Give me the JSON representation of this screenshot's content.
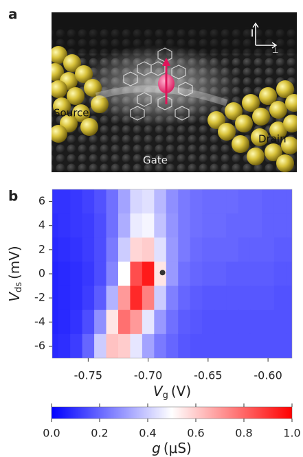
{
  "figure": {
    "panel_a": "a",
    "panel_b": "b",
    "source": "Source",
    "drain": "Drain",
    "gate": "Gate",
    "parallel": "∥",
    "perpendicular": "⊥"
  },
  "chart_data": {
    "type": "heatmap",
    "x": [
      -0.78,
      -0.77,
      -0.76,
      -0.75,
      -0.74,
      -0.73,
      -0.72,
      -0.71,
      -0.7,
      -0.69,
      -0.68,
      -0.67,
      -0.66,
      -0.65,
      -0.64,
      -0.63,
      -0.62,
      -0.61,
      -0.6,
      -0.59,
      -0.58
    ],
    "y": [
      6,
      4,
      2,
      0,
      -2,
      -4,
      -6
    ],
    "z": [
      [
        0.1,
        0.1,
        0.11,
        0.13,
        0.16,
        0.22,
        0.32,
        0.42,
        0.44,
        0.36,
        0.28,
        0.24,
        0.22,
        0.21,
        0.21,
        0.21,
        0.2,
        0.2,
        0.19,
        0.19,
        0.19
      ],
      [
        0.09,
        0.1,
        0.11,
        0.12,
        0.15,
        0.22,
        0.34,
        0.46,
        0.48,
        0.38,
        0.29,
        0.24,
        0.22,
        0.21,
        0.21,
        0.2,
        0.2,
        0.2,
        0.19,
        0.19,
        0.19
      ],
      [
        0.08,
        0.09,
        0.1,
        0.12,
        0.15,
        0.24,
        0.4,
        0.58,
        0.6,
        0.44,
        0.3,
        0.24,
        0.21,
        0.2,
        0.2,
        0.2,
        0.19,
        0.19,
        0.19,
        0.18,
        0.18
      ],
      [
        0.07,
        0.08,
        0.09,
        0.11,
        0.15,
        0.26,
        0.5,
        0.85,
        0.95,
        0.55,
        0.3,
        0.22,
        0.2,
        0.19,
        0.19,
        0.18,
        0.18,
        0.18,
        0.18,
        0.17,
        0.17
      ],
      [
        0.07,
        0.08,
        0.09,
        0.12,
        0.18,
        0.35,
        0.7,
        0.92,
        0.75,
        0.4,
        0.25,
        0.2,
        0.18,
        0.17,
        0.17,
        0.17,
        0.17,
        0.17,
        0.17,
        0.16,
        0.16
      ],
      [
        0.07,
        0.08,
        0.1,
        0.15,
        0.28,
        0.55,
        0.78,
        0.7,
        0.45,
        0.3,
        0.22,
        0.18,
        0.17,
        0.16,
        0.16,
        0.16,
        0.16,
        0.16,
        0.16,
        0.16,
        0.16
      ],
      [
        0.08,
        0.09,
        0.12,
        0.2,
        0.4,
        0.62,
        0.6,
        0.45,
        0.32,
        0.24,
        0.2,
        0.17,
        0.16,
        0.16,
        0.16,
        0.16,
        0.16,
        0.16,
        0.16,
        0.16,
        0.16
      ]
    ],
    "xlim": [
      -0.78,
      -0.58
    ],
    "xticks": [
      -0.75,
      {
        "value": -0.7,
        "label": "-0.70"
      },
      -0.65,
      {
        "value": -0.6,
        "label": "-0.60"
      }
    ],
    "ylim": [
      -7,
      7
    ],
    "yticks": [
      6,
      4,
      2,
      0,
      -2,
      -4,
      -6
    ],
    "xlabel": {
      "symbol": "V",
      "subscript": "g",
      "unit": "(V)"
    },
    "ylabel": {
      "symbol": "V",
      "subscript": "ds",
      "unit": "(mV)"
    },
    "marker": {
      "x": -0.688,
      "y": 0.1,
      "color": "#333333"
    },
    "colormap": [
      "#0000ff",
      "#ffffff",
      "#ff0000"
    ],
    "clim": [
      0,
      1
    ],
    "cticks": [
      {
        "value": 0,
        "label": "0.0"
      },
      0.2,
      0.4,
      0.6,
      0.8,
      {
        "value": 1,
        "label": "1.0"
      }
    ],
    "clabel": {
      "symbol": "g",
      "unit": "(μS)"
    }
  }
}
